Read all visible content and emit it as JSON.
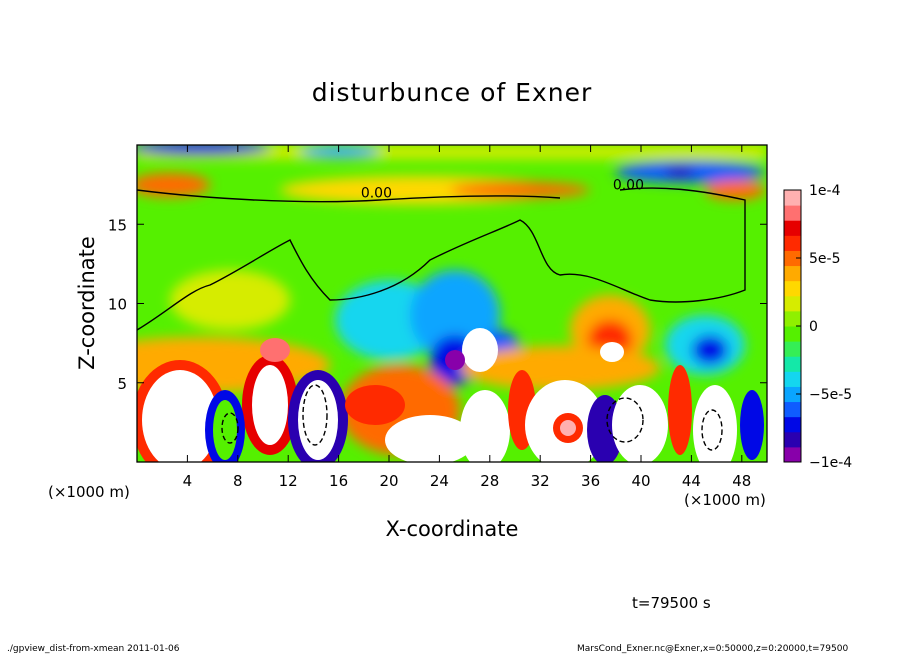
{
  "chart_data": {
    "type": "heatmap",
    "title": "disturbunce of Exner",
    "xlabel": "X-coordinate",
    "ylabel": "Z-coordinate",
    "x_unit": "(×1000 m)",
    "y_unit": "(×1000 m)",
    "xlim": [
      0,
      50
    ],
    "ylim": [
      0,
      20
    ],
    "x_ticks": [
      4,
      8,
      12,
      16,
      20,
      24,
      28,
      32,
      36,
      40,
      44,
      48
    ],
    "y_ticks": [
      5,
      10,
      15
    ],
    "colorbar": {
      "ticks": [
        "1e-4",
        "5e-5",
        "0",
        "−5e-5",
        "−1e-4"
      ],
      "tick_values": [
        0.0001,
        5e-05,
        0,
        -5e-05,
        -0.0001
      ],
      "range": [
        -0.0001,
        0.0001
      ],
      "colors": [
        "#8800aa",
        "#2a00b0",
        "#0008e6",
        "#0f5cff",
        "#0aa5ff",
        "#14d6ef",
        "#14e8a8",
        "#35ee55",
        "#55f000",
        "#8ff000",
        "#d6ec00",
        "#ffd800",
        "#ffaa00",
        "#ff6a00",
        "#ff2a00",
        "#e60000",
        "#ff7070",
        "#ffb0b0"
      ]
    },
    "contour_labels": [
      {
        "text": "0.00",
        "x": 19.0,
        "z": 16.7
      },
      {
        "text": "0.00",
        "x": 39.0,
        "z": 17.2
      }
    ],
    "features": [
      {
        "kind": "positive_max",
        "x": 38.5,
        "z": 7.0
      },
      {
        "kind": "negative_min",
        "x": 45.5,
        "z": 7.0
      },
      {
        "kind": "negative_min",
        "x": 25.0,
        "z": 6.5
      },
      {
        "kind": "positive_band",
        "x": 37.0,
        "z": 17.7
      },
      {
        "kind": "negative_band",
        "x": 4.0,
        "z": 19.7
      }
    ]
  },
  "annotations": {
    "time_label": "t=79500 s",
    "footer_left": "./gpview_dist-from-xmean  2011-01-06",
    "footer_right": "MarsCond_Exner.nc@Exner,x=0:50000,z=0:20000,t=79500"
  }
}
